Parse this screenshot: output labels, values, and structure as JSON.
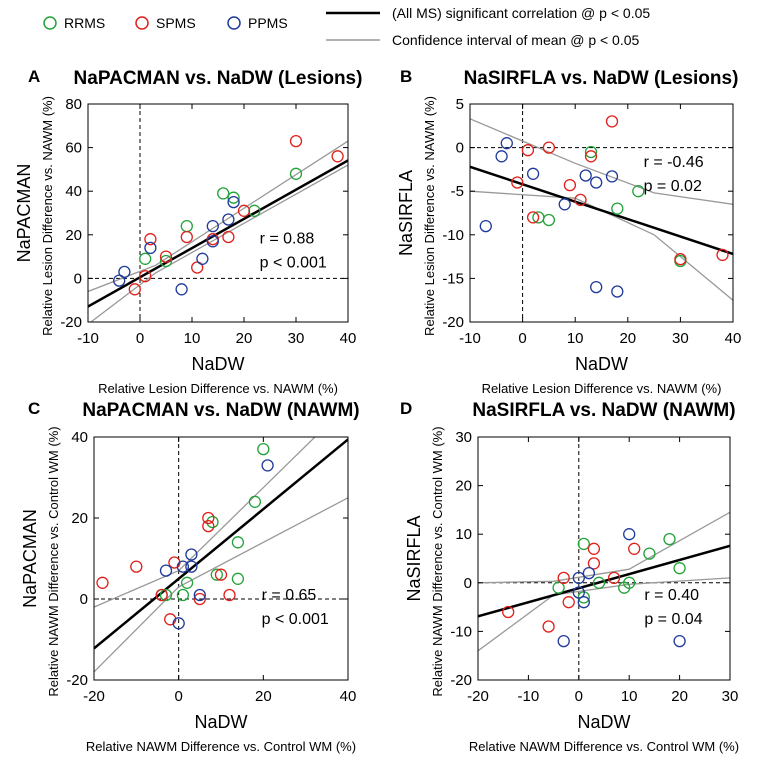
{
  "legend": {
    "groups": [
      {
        "label": "RRMS",
        "color": "#22a33a"
      },
      {
        "label": "SPMS",
        "color": "#e0201b"
      },
      {
        "label": "PPMS",
        "color": "#1f3a9a"
      }
    ],
    "lines": [
      {
        "label": "(All MS) significant correlation @ p < 0.05",
        "color": "#000000"
      },
      {
        "label": "Confidence interval of mean @ p < 0.05",
        "color": "#999999"
      }
    ]
  },
  "chart_data": [
    {
      "panel": "A",
      "type": "scatter",
      "title": "NaPACMAN vs. NaDW (Lesions)",
      "ylabel": "NaPACMAN",
      "ylabel2": "Relative Lesion Difference vs. NAWM (%)",
      "xlabel": "NaDW",
      "xlabel2": "Relative Lesion Difference vs. NAWM (%)",
      "xlim": [
        -10,
        40
      ],
      "ylim": [
        -20,
        80
      ],
      "xticks": [
        "-10",
        "0",
        "10",
        "20",
        "30",
        "40"
      ],
      "yticks": [
        "-20",
        "0",
        "20",
        "40",
        "60",
        "80"
      ],
      "stats": [
        "r = 0.88",
        "p < 0.001"
      ],
      "fit": {
        "slope": 1.34,
        "intercept": 0.5
      },
      "ci": {
        "lower": [
          [
            -10,
            -21
          ],
          [
            3,
            2.5
          ],
          [
            40,
            52
          ]
        ],
        "upper": [
          [
            -10,
            -6
          ],
          [
            3,
            6
          ],
          [
            40,
            63
          ]
        ]
      },
      "series": [
        {
          "group": "RRMS",
          "points": [
            [
              1,
              9
            ],
            [
              5,
              8
            ],
            [
              9,
              24
            ],
            [
              16,
              39
            ],
            [
              18,
              37
            ],
            [
              22,
              31
            ],
            [
              30,
              48
            ]
          ]
        },
        {
          "group": "SPMS",
          "points": [
            [
              -1,
              -5
            ],
            [
              1,
              1
            ],
            [
              2,
              18
            ],
            [
              5,
              10
            ],
            [
              9,
              19
            ],
            [
              11,
              5
            ],
            [
              14,
              18
            ],
            [
              17,
              19
            ],
            [
              20,
              31
            ],
            [
              30,
              63
            ],
            [
              38,
              56
            ]
          ]
        },
        {
          "group": "PPMS",
          "points": [
            [
              -4,
              -1
            ],
            [
              -3,
              3
            ],
            [
              2,
              14
            ],
            [
              8,
              -5
            ],
            [
              12,
              9
            ],
            [
              14,
              24
            ],
            [
              17,
              27
            ],
            [
              18,
              35
            ],
            [
              14,
              17
            ]
          ]
        }
      ]
    },
    {
      "panel": "B",
      "type": "scatter",
      "title": "NaSIRFLA vs. NaDW (Lesions)",
      "ylabel": "NaSIRFLA",
      "ylabel2": "Relative Lesion Difference vs. NAWM (%)",
      "xlabel": "NaDW",
      "xlabel2": "Relative Lesion Difference vs. NAWM (%)",
      "xlim": [
        -10,
        40
      ],
      "ylim": [
        -20,
        5
      ],
      "xticks": [
        "-10",
        "0",
        "10",
        "20",
        "30",
        "40"
      ],
      "yticks": [
        "-20",
        "-15",
        "-10",
        "-5",
        "0",
        "5"
      ],
      "stats": [
        "r = -0.46",
        "p = 0.02"
      ],
      "fit": {
        "slope": -0.2,
        "intercept": -4.2
      },
      "ci": {
        "lower": [
          [
            -10,
            -5
          ],
          [
            10,
            -5.8
          ],
          [
            25,
            -10
          ],
          [
            40,
            -17.5
          ]
        ],
        "upper": [
          [
            -10,
            3.3
          ],
          [
            10,
            -1.8
          ],
          [
            25,
            -5.2
          ],
          [
            40,
            -6.5
          ]
        ]
      },
      "series": [
        {
          "group": "RRMS",
          "points": [
            [
              3,
              -8
            ],
            [
              5,
              -8.3
            ],
            [
              13,
              -0.5
            ],
            [
              18,
              -7
            ],
            [
              22,
              -5
            ],
            [
              30,
              -13
            ]
          ]
        },
        {
          "group": "SPMS",
          "points": [
            [
              -1,
              -4
            ],
            [
              1,
              -0.3
            ],
            [
              2,
              -8
            ],
            [
              5,
              0
            ],
            [
              9,
              -4.3
            ],
            [
              11,
              -6
            ],
            [
              13,
              -1
            ],
            [
              17,
              3
            ],
            [
              30,
              -12.8
            ],
            [
              38,
              -12.3
            ]
          ]
        },
        {
          "group": "PPMS",
          "points": [
            [
              -7,
              -9
            ],
            [
              -3,
              0.5
            ],
            [
              -4,
              -1
            ],
            [
              2,
              -3
            ],
            [
              8,
              -6.5
            ],
            [
              12,
              -3.2
            ],
            [
              14,
              -4
            ],
            [
              17,
              -3.3
            ],
            [
              14,
              -16
            ],
            [
              18,
              -16.5
            ]
          ]
        }
      ]
    },
    {
      "panel": "C",
      "type": "scatter",
      "title": "NaPACMAN vs. NaDW (NAWM)",
      "ylabel": "NaPACMAN",
      "ylabel2": "Relative NAWM Difference vs. Control WM (%)",
      "xlabel": "NaDW",
      "xlabel2": "Relative NAWM Difference vs. Control WM (%)",
      "xlim": [
        -20,
        40
      ],
      "ylim": [
        -20,
        40
      ],
      "xticks": [
        "-20",
        "0",
        "20",
        "40"
      ],
      "yticks": [
        "-20",
        "0",
        "20",
        "40"
      ],
      "stats": [
        "r = 0.65",
        "p < 0.001"
      ],
      "fit": {
        "slope": 0.86,
        "intercept": 5.0
      },
      "ci": {
        "lower": [
          [
            -20,
            -18
          ],
          [
            0,
            3
          ],
          [
            40,
            25
          ]
        ],
        "upper": [
          [
            -20,
            -2
          ],
          [
            0,
            7
          ],
          [
            40,
            48
          ]
        ]
      },
      "series": [
        {
          "group": "RRMS",
          "points": [
            [
              -4,
              1
            ],
            [
              -3,
              1
            ],
            [
              1,
              1
            ],
            [
              2,
              4
            ],
            [
              8,
              19
            ],
            [
              14,
              5
            ],
            [
              14,
              14
            ],
            [
              18,
              24
            ],
            [
              20,
              37
            ],
            [
              9,
              6
            ]
          ]
        },
        {
          "group": "SPMS",
          "points": [
            [
              -18,
              4
            ],
            [
              -10,
              8
            ],
            [
              -4,
              1
            ],
            [
              -2,
              -5
            ],
            [
              5,
              0
            ],
            [
              7,
              18
            ],
            [
              7,
              20
            ],
            [
              10,
              6
            ],
            [
              12,
              1
            ],
            [
              -1,
              9
            ]
          ]
        },
        {
          "group": "PPMS",
          "points": [
            [
              -3,
              7
            ],
            [
              1,
              8
            ],
            [
              3,
              8
            ],
            [
              3,
              11
            ],
            [
              0,
              -6
            ],
            [
              5,
              1
            ],
            [
              21,
              33
            ]
          ]
        }
      ]
    },
    {
      "panel": "D",
      "type": "scatter",
      "title": "NaSIRFLA vs. NaDW (NAWM)",
      "ylabel": "NaSIRFLA",
      "ylabel2": "Relative NAWM Difference vs. Control WM (%)",
      "xlabel": "NaDW",
      "xlabel2": "Relative NAWM Difference vs. Control WM (%)",
      "xlim": [
        -20,
        30
      ],
      "ylim": [
        -20,
        30
      ],
      "xticks": [
        "-20",
        "-10",
        "0",
        "10",
        "20",
        "30"
      ],
      "yticks": [
        "-20",
        "-10",
        "0",
        "10",
        "20",
        "30"
      ],
      "stats": [
        "r = 0.40",
        "p = 0.04"
      ],
      "fit": {
        "slope": 0.29,
        "intercept": -1.1
      },
      "ci": {
        "lower": [
          [
            -20,
            -14
          ],
          [
            -5,
            -2.5
          ],
          [
            10,
            -0.3
          ],
          [
            30,
            1
          ]
        ],
        "upper": [
          [
            -20,
            0
          ],
          [
            -5,
            0.3
          ],
          [
            10,
            2.8
          ],
          [
            30,
            14.5
          ]
        ]
      },
      "series": [
        {
          "group": "RRMS",
          "points": [
            [
              -4,
              -1
            ],
            [
              1,
              -3
            ],
            [
              1,
              8
            ],
            [
              4,
              0
            ],
            [
              9,
              -1
            ],
            [
              10,
              0
            ],
            [
              14,
              6
            ],
            [
              18,
              9
            ],
            [
              20,
              3
            ]
          ]
        },
        {
          "group": "SPMS",
          "points": [
            [
              -14,
              -6
            ],
            [
              -6,
              -9
            ],
            [
              -3,
              1
            ],
            [
              -2,
              -4
            ],
            [
              3,
              4
            ],
            [
              3,
              7
            ],
            [
              7,
              1
            ],
            [
              11,
              7
            ]
          ]
        },
        {
          "group": "PPMS",
          "points": [
            [
              -3,
              -12
            ],
            [
              0,
              1
            ],
            [
              0,
              -2
            ],
            [
              1,
              -4
            ],
            [
              2,
              2
            ],
            [
              10,
              10
            ],
            [
              20,
              -12
            ]
          ]
        }
      ]
    }
  ]
}
